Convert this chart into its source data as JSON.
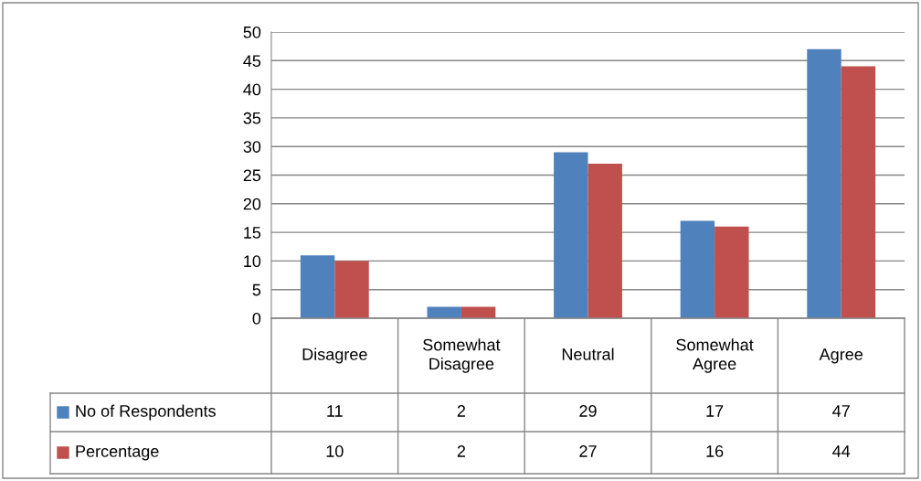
{
  "chart_data": {
    "type": "bar",
    "categories": [
      "Disagree",
      "Somewhat\nDisagree",
      "Neutral",
      "Somewhat\nAgree",
      "Agree"
    ],
    "series": [
      {
        "name": "No of Respondents",
        "color": "#4f81bd",
        "values": [
          11,
          2,
          29,
          17,
          47
        ]
      },
      {
        "name": "Percentage",
        "color": "#c0504d",
        "values": [
          10,
          2,
          27,
          16,
          44
        ]
      }
    ],
    "ylim": [
      0,
      50
    ],
    "yticks": [
      0,
      5,
      10,
      15,
      20,
      25,
      30,
      35,
      40,
      45,
      50
    ],
    "grid": "y",
    "legend": "bottom left",
    "data_labels": true
  }
}
